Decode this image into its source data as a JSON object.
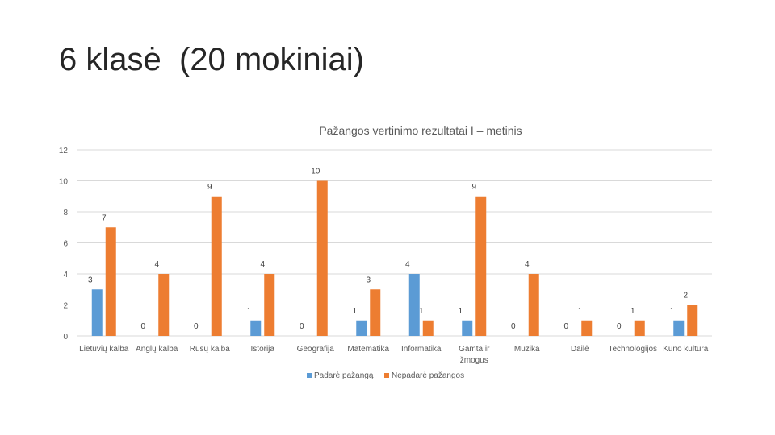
{
  "slide": {
    "title": "6 klasė  (20 mokiniai)"
  },
  "colors": {
    "series1": "#5B9BD5",
    "series2": "#ED7D31",
    "grid": "#D9D9D9",
    "text": "#595959"
  },
  "chart_data": {
    "type": "bar",
    "title": "Pažangos vertinimo rezultatai I – metinis",
    "xlabel": "",
    "ylabel": "",
    "ylim": [
      0,
      12
    ],
    "yticks": [
      0,
      2,
      4,
      6,
      8,
      10,
      12
    ],
    "grid": true,
    "legend_position": "bottom",
    "categories": [
      "Lietuvių kalba",
      "Anglų kalba",
      "Rusų kalba",
      "Istorija",
      "Geografija",
      "Matematika",
      "Informatika",
      "Gamta ir žmogus",
      "Muzika",
      "Dailė",
      "Technologijos",
      "Kūno kultūra"
    ],
    "series": [
      {
        "name": "Padarė pažangą",
        "values": [
          3,
          0,
          0,
          1,
          0,
          1,
          4,
          1,
          0,
          0,
          0,
          1
        ]
      },
      {
        "name": "Nepadarė pažangos",
        "values": [
          7,
          4,
          9,
          4,
          10,
          3,
          1,
          9,
          4,
          1,
          1,
          2
        ]
      }
    ]
  }
}
